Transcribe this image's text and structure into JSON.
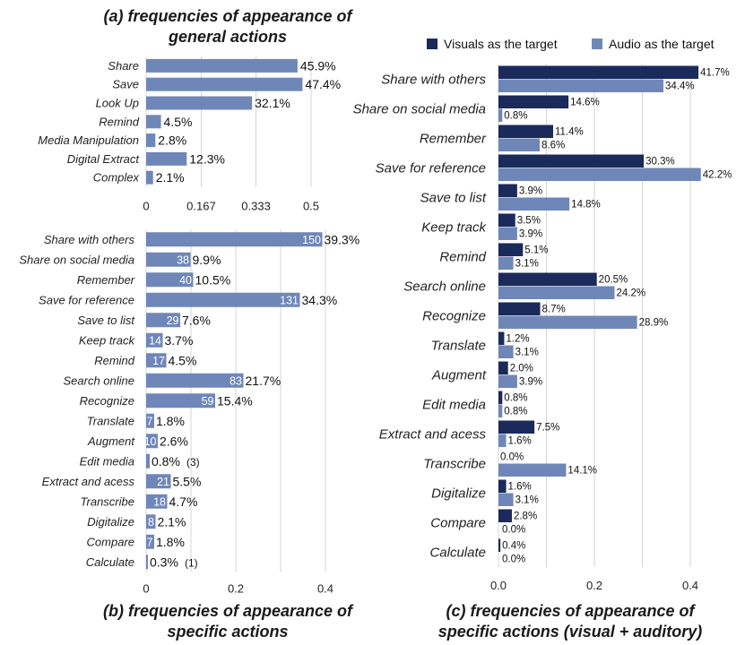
{
  "chart_data": [
    {
      "id": "a",
      "type": "bar",
      "orientation": "horizontal",
      "title": "(a) frequencies of appearance of general actions",
      "title_lines": [
        "(a) frequencies of appearance of",
        "general actions"
      ],
      "categories": [
        "Share",
        "Save",
        "Look Up",
        "Remind",
        "Media Manipulation",
        "Digital Extract",
        "Complex"
      ],
      "values": [
        0.459,
        0.474,
        0.321,
        0.045,
        0.028,
        0.123,
        0.021
      ],
      "value_labels": [
        "45.9%",
        "47.4%",
        "32.1%",
        "4.5%",
        "2.8%",
        "12.3%",
        "2.1%"
      ],
      "xlim": [
        0,
        0.5
      ],
      "xticks": [
        0,
        0.167,
        0.333,
        0.5
      ],
      "xtick_labels": [
        "0",
        "0.167",
        "0.333",
        "0.5"
      ],
      "grid": true,
      "color": "#6f87b8"
    },
    {
      "id": "b",
      "type": "bar",
      "orientation": "horizontal",
      "title": "(b) frequencies of appearance of specific actions",
      "title_lines": [
        "(b) frequencies of appearance of",
        "specific actions"
      ],
      "categories": [
        "Share with others",
        "Share on social media",
        "Remember",
        "Save for reference",
        "Save to list",
        "Keep track",
        "Remind",
        "Search online",
        "Recognize",
        "Translate",
        "Augment",
        "Edit media",
        "Extract and acess",
        "Transcribe",
        "Digitalize",
        "Compare",
        "Calculate"
      ],
      "values": [
        0.393,
        0.099,
        0.105,
        0.343,
        0.076,
        0.037,
        0.045,
        0.217,
        0.154,
        0.018,
        0.026,
        0.008,
        0.055,
        0.047,
        0.021,
        0.018,
        0.003
      ],
      "counts": [
        "150",
        "38",
        "40",
        "131",
        "29",
        "14",
        "17",
        "83",
        "59",
        "7",
        "10",
        "",
        "21",
        "18",
        "8",
        "7",
        ""
      ],
      "value_labels": [
        "39.3%",
        "9.9%",
        "10.5%",
        "34.3%",
        "7.6%",
        "3.7%",
        "4.5%",
        "21.7%",
        "15.4%",
        "1.8%",
        "2.6%",
        "0.8%",
        "5.5%",
        "4.7%",
        "2.1%",
        "1.8%",
        "0.3%"
      ],
      "count_notes": [
        "",
        "",
        "",
        "",
        "",
        "",
        "",
        "",
        "",
        "",
        "",
        "(3)",
        "",
        "",
        "",
        "",
        "(1)"
      ],
      "xlim": [
        0,
        0.4
      ],
      "xticks": [
        0,
        0.2,
        0.4
      ],
      "xtick_labels": [
        "0",
        "0.2",
        "0.4"
      ],
      "grid": true,
      "color": "#6f87b8"
    },
    {
      "id": "c",
      "type": "bar",
      "orientation": "horizontal",
      "title": "(c) frequencies of appearance of specific actions (visual + auditory)",
      "title_lines": [
        "(c) frequencies of appearance of",
        "specific actions (visual + auditory)"
      ],
      "categories": [
        "Share with others",
        "Share on social media",
        "Remember",
        "Save for reference",
        "Save to list",
        "Keep track",
        "Remind",
        "Search online",
        "Recognize",
        "Translate",
        "Augment",
        "Edit media",
        "Extract and acess",
        "Transcribe",
        "Digitalize",
        "Compare",
        "Calculate"
      ],
      "series": [
        {
          "name": "Visuals as the target",
          "color": "#1a2a5a",
          "values": [
            0.417,
            0.146,
            0.114,
            0.303,
            0.039,
            0.035,
            0.051,
            0.205,
            0.087,
            0.012,
            0.02,
            0.008,
            0.075,
            0.0,
            0.016,
            0.028,
            0.004
          ],
          "labels": [
            "41.7%",
            "14.6%",
            "11.4%",
            "30.3%",
            "3.9%",
            "3.5%",
            "5.1%",
            "20.5%",
            "8.7%",
            "1.2%",
            "2.0%",
            "0.8%",
            "7.5%",
            "",
            "1.6%",
            "2.8%",
            "0.4%"
          ]
        },
        {
          "name": "Audio as the target",
          "color": "#6f87b8",
          "values": [
            0.344,
            0.008,
            0.086,
            0.422,
            0.148,
            0.039,
            0.031,
            0.242,
            0.289,
            0.031,
            0.039,
            0.008,
            0.016,
            0.141,
            0.031,
            0.0,
            0.0
          ],
          "labels": [
            "34.4%",
            "0.8%",
            "8.6%",
            "42.2%",
            "14.8%",
            "3.9%",
            "3.1%",
            "24.2%",
            "28.9%",
            "3.1%",
            "3.9%",
            "0.8%",
            "1.6%",
            "14.1%",
            "3.1%",
            "0.0%",
            "0.0%"
          ]
        }
      ],
      "extra_labels": [
        "0.0%"
      ],
      "xlim": [
        0,
        0.4
      ],
      "xticks": [
        0,
        0.2,
        0.4
      ],
      "xtick_labels": [
        "0.0",
        "0.2",
        "0.4"
      ],
      "grid": true,
      "legend": "top"
    }
  ]
}
